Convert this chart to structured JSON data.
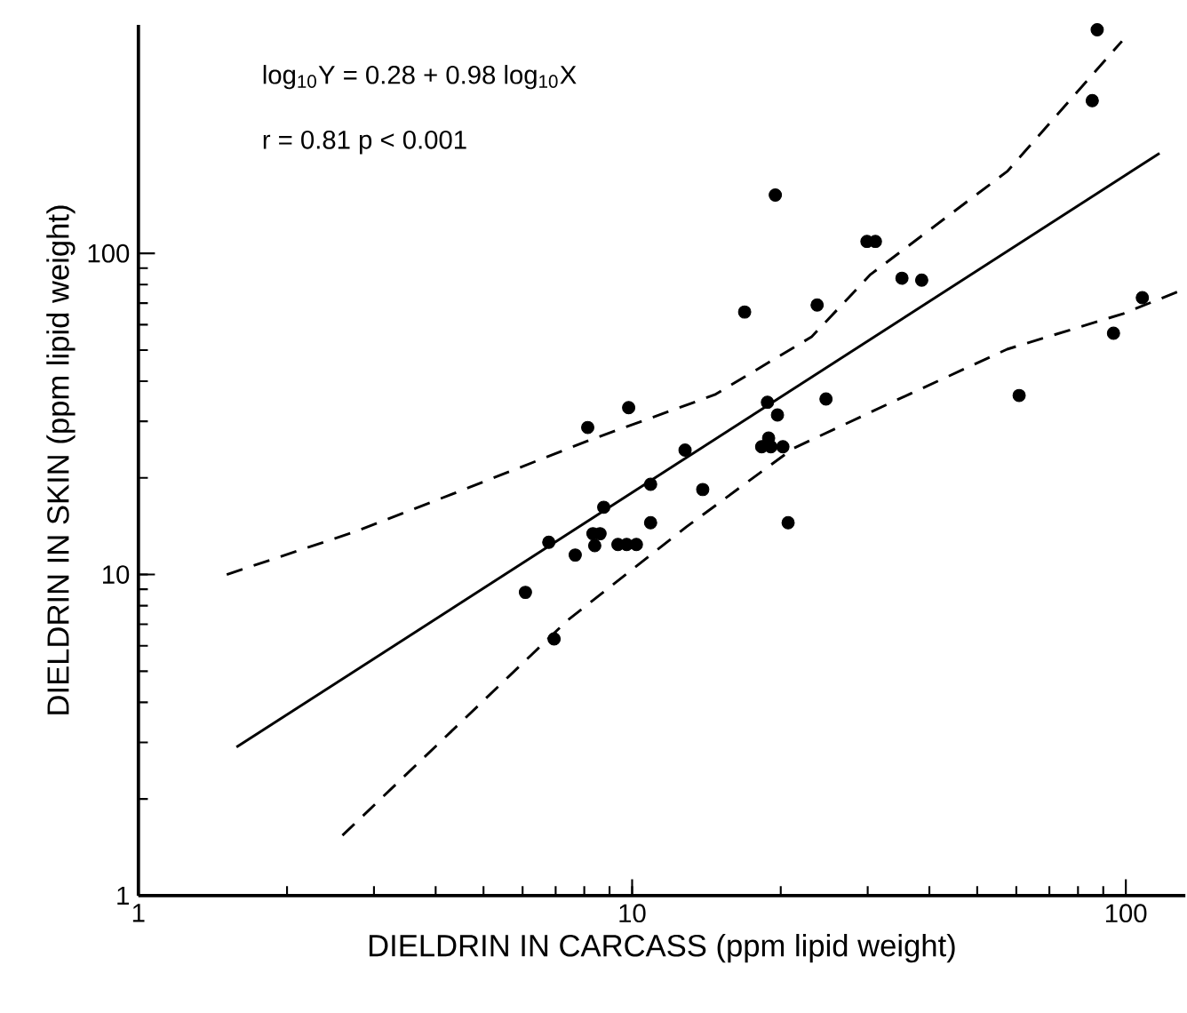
{
  "chart_data": {
    "type": "scatter",
    "xlabel": "DIELDRIN IN CARCASS  (ppm lipid weight)",
    "ylabel": "DIELDRIN IN SKIN  (ppm lipid weight)",
    "annotations": [
      "log$_{10}$Y = 0.28 + 0.98 log$_{10}$X",
      "r = 0.81   p < 0.001"
    ],
    "log": "xy",
    "marker": "circle",
    "xlim": [
      1,
      132
    ],
    "ylim": [
      1,
      515
    ],
    "xticks": [
      1,
      10,
      100
    ],
    "yticks": [
      1,
      10,
      100
    ],
    "series": [
      {
        "color": "#000000",
        "x": [
          6.08,
          6.95,
          6.78,
          7.67,
          8.4,
          8.33,
          8.61,
          8.76,
          9.36,
          9.75,
          10.2,
          8.13,
          9.84,
          10.9,
          10.9,
          13.9,
          12.8,
          20.7,
          18.3,
          19.1,
          20.2,
          18.9,
          18.8,
          19.7,
          24.7,
          16.9,
          23.7,
          35.2,
          38.6,
          19.5,
          29.9,
          31.1,
          87.5,
          85.5,
          108,
          94.4,
          60.8
        ],
        "values": [
          8.8,
          6.3,
          12.6,
          11.5,
          12.3,
          13.4,
          13.4,
          16.2,
          12.4,
          12.4,
          12.4,
          28.7,
          33.1,
          14.5,
          19.1,
          18.4,
          24.4,
          14.5,
          25.0,
          25.0,
          25.0,
          26.6,
          34.4,
          31.4,
          35.2,
          65.7,
          69.1,
          83.7,
          82.6,
          152,
          109,
          109,
          497,
          299,
          72.8,
          56.4,
          36.1
        ]
      },
      {
        "type": "line",
        "color": "#000000",
        "marker": "none",
        "line_style": "solid",
        "x": [
          1.58,
          117
        ],
        "values": [
          2.9,
          205
        ]
      },
      {
        "type": "line",
        "color": "#000000",
        "marker": "none",
        "line_style": "dashed",
        "x": [
          1.51,
          2.75,
          4.4,
          8.25,
          14.7,
          23.1,
          30.4,
          57.5,
          98.2
        ],
        "values": [
          10,
          13.6,
          18,
          26.3,
          36.3,
          55,
          86,
          180,
          458
        ]
      },
      {
        "type": "line",
        "color": "#000000",
        "marker": "none",
        "line_style": "dashed",
        "x": [
          2.59,
          4.51,
          7.4,
          12.9,
          21.2,
          32.9,
          57.5,
          99,
          132
        ],
        "values": [
          1.54,
          3.48,
          7.2,
          14.1,
          24.7,
          33.9,
          50.3,
          65.0,
          77.7
        ]
      }
    ]
  }
}
